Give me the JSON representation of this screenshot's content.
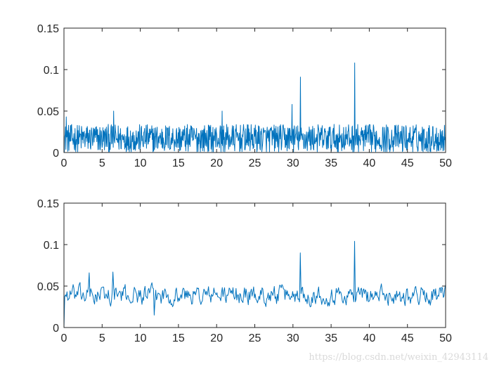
{
  "chart_data": [
    {
      "type": "line",
      "title": "",
      "xlabel": "",
      "ylabel": "",
      "xlim": [
        0,
        50
      ],
      "ylim": [
        0,
        0.15
      ],
      "xticks": [
        0,
        5,
        10,
        15,
        20,
        25,
        30,
        35,
        40,
        45,
        50
      ],
      "yticks": [
        0,
        0.05,
        0.1,
        0.15
      ],
      "grid": false,
      "series": [
        {
          "color": "#0072BD",
          "style": "dense-noise",
          "points": 1000,
          "baseline": 0.017,
          "noise_amplitude": 0.017,
          "peaks": [
            {
              "x": 29.9,
              "y": 0.058
            },
            {
              "x": 31.0,
              "y": 0.091
            },
            {
              "x": 38.1,
              "y": 0.108
            },
            {
              "x": 6.5,
              "y": 0.05
            },
            {
              "x": 20.7,
              "y": 0.05
            },
            {
              "x": 0.3,
              "y": 0.043
            },
            {
              "x": 0.0,
              "y": 0.005
            }
          ]
        }
      ]
    },
    {
      "type": "line",
      "title": "",
      "xlabel": "",
      "ylabel": "",
      "xlim": [
        0,
        50
      ],
      "ylim": [
        0,
        0.15
      ],
      "xticks": [
        0,
        5,
        10,
        15,
        20,
        25,
        30,
        35,
        40,
        45,
        50
      ],
      "yticks": [
        0,
        0.05,
        0.1,
        0.15
      ],
      "grid": false,
      "series": [
        {
          "color": "#0072BD",
          "style": "smoothed-noise",
          "points": 500,
          "baseline": 0.039,
          "noise_amplitude": 0.011,
          "peaks": [
            {
              "x": 0.0,
              "y": 0.0
            },
            {
              "x": 3.3,
              "y": 0.066
            },
            {
              "x": 6.4,
              "y": 0.067
            },
            {
              "x": 31.0,
              "y": 0.09
            },
            {
              "x": 38.1,
              "y": 0.104
            },
            {
              "x": 11.8,
              "y": 0.015
            }
          ]
        }
      ]
    }
  ],
  "watermark": "https://blog.csdn.net/weixin_42943114"
}
